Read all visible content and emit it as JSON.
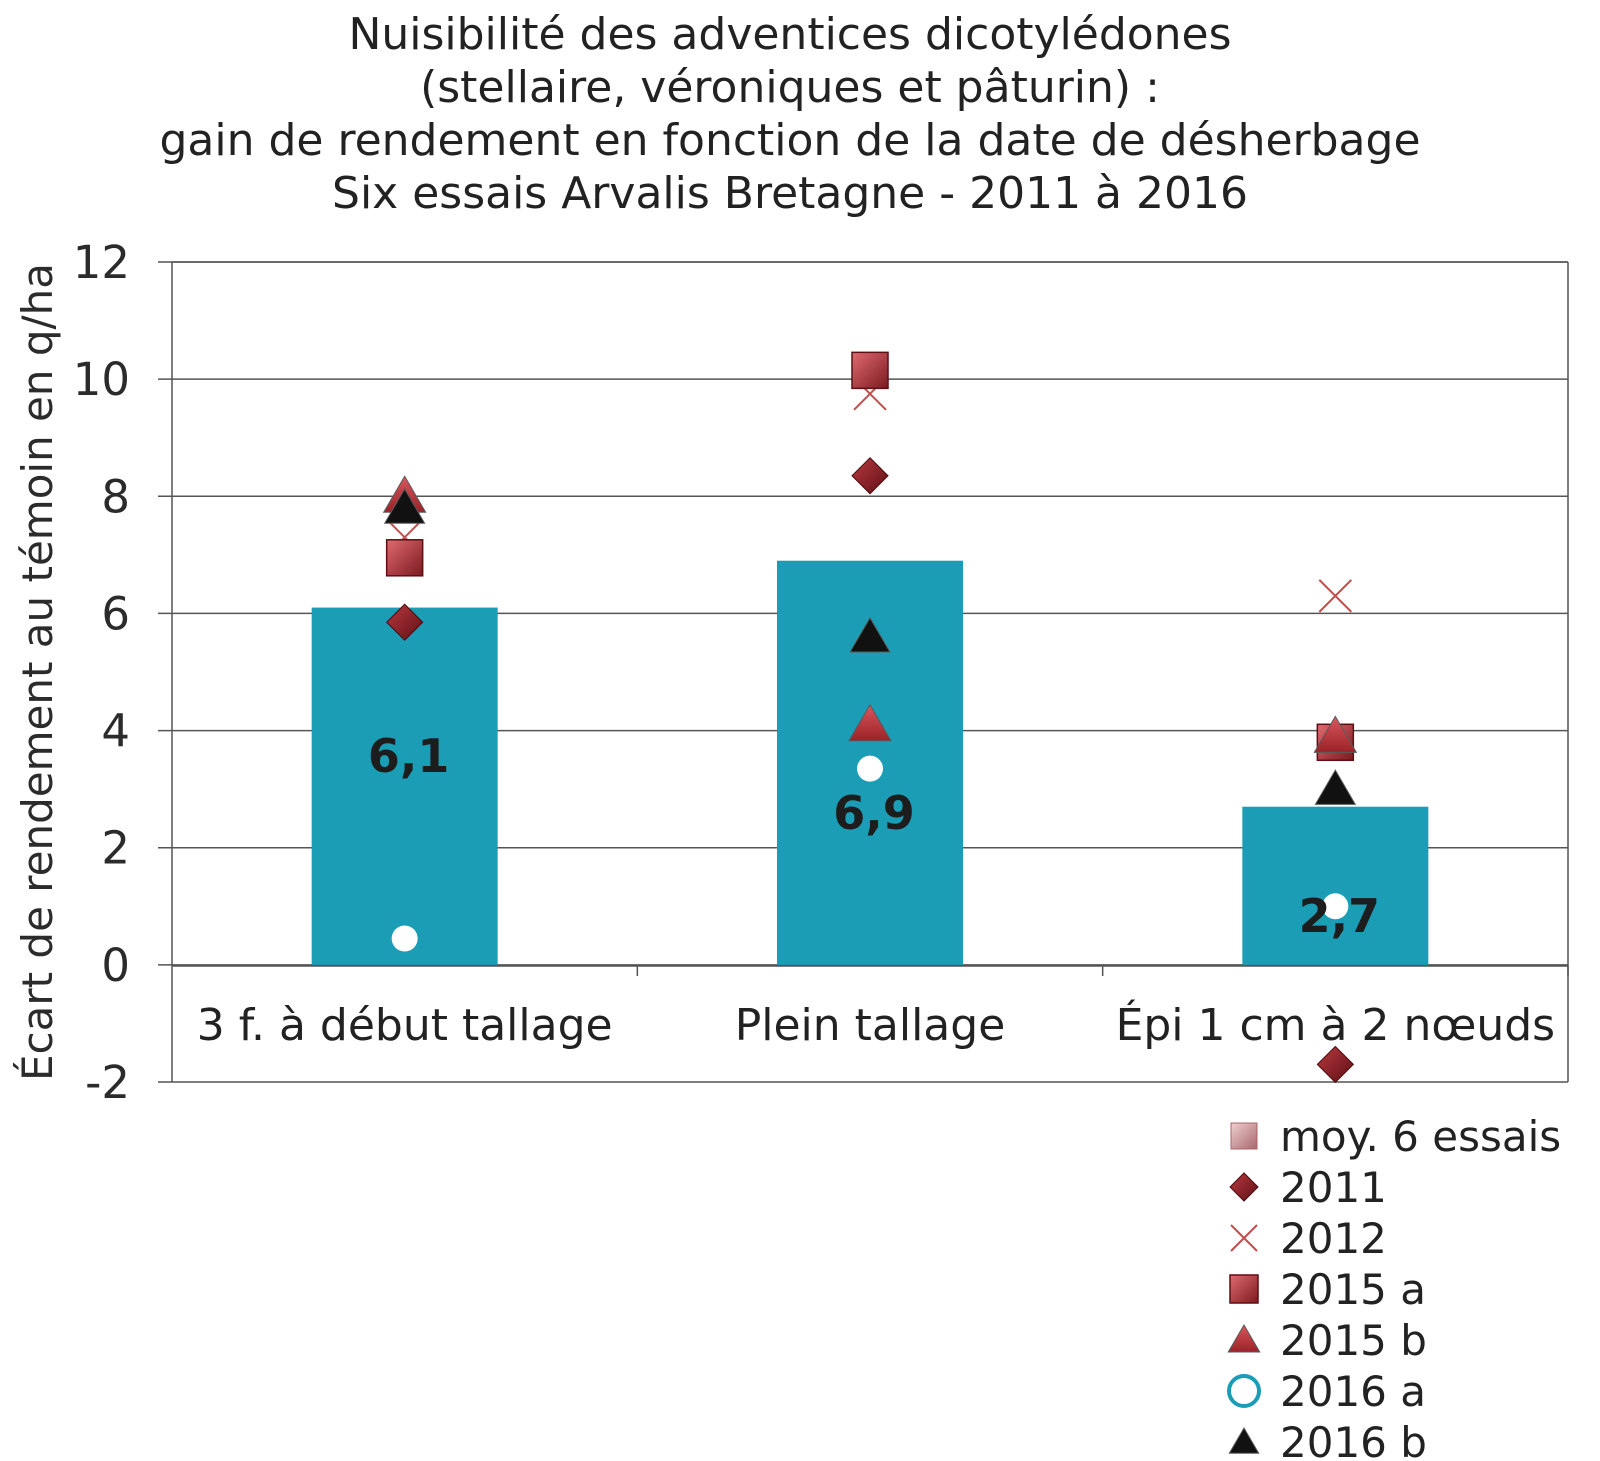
{
  "title_lines": [
    "Nuisibilité des adventices dicotylédones",
    "(stellaire, véroniques et pâturin) :",
    "gain de rendement en fonction de la date de désherbage",
    "Six essais Arvalis Bretagne - 2011 à 2016"
  ],
  "colors": {
    "bar": "#1a9db5",
    "dark_red": "#8b1c22",
    "red": "#b8333a",
    "cross": "#c0504d",
    "black": "#111111",
    "white": "#ffffff",
    "teal": "#1a9db5",
    "pink": "#c98a8e"
  },
  "chart_data": {
    "type": "bar",
    "ylabel": "Écart de rendement au témoin en q/ha",
    "ylim": [
      -2,
      12
    ],
    "yticks": [
      "12",
      "10",
      "8",
      "6",
      "4",
      "2",
      "0",
      "-2"
    ],
    "ytick_values": [
      12,
      10,
      8,
      6,
      4,
      2,
      0,
      -2
    ],
    "grid": true,
    "categories": [
      "3 f. à début tallage",
      "Plein tallage",
      "Épi 1 cm à 2 nœuds"
    ],
    "bars": {
      "name": "moy. 6 essais",
      "values": [
        6.1,
        6.9,
        2.7
      ],
      "labels": [
        "6,1",
        "6,9",
        "2,7"
      ]
    },
    "series": [
      {
        "name": "2011",
        "marker": "diamond",
        "values": [
          5.85,
          8.35,
          -1.7
        ]
      },
      {
        "name": "2012",
        "marker": "cross",
        "values": [
          7.3,
          9.75,
          6.3
        ]
      },
      {
        "name": "2015 a",
        "marker": "square",
        "values": [
          6.95,
          10.15,
          3.8
        ]
      },
      {
        "name": "2015 b",
        "marker": "triangle",
        "values": [
          8.0,
          4.1,
          3.9
        ]
      },
      {
        "name": "2016 a",
        "marker": "circle",
        "values": [
          0.45,
          3.35,
          1.0
        ]
      },
      {
        "name": "2016 b",
        "marker": "triangle-black",
        "values": [
          7.8,
          5.6,
          3.0
        ]
      }
    ],
    "legend_position": "bottom-right",
    "legend": [
      "moy. 6 essais",
      "2011",
      "2012",
      "2015 a",
      "2015 b",
      "2016 a",
      "2016 b"
    ]
  }
}
